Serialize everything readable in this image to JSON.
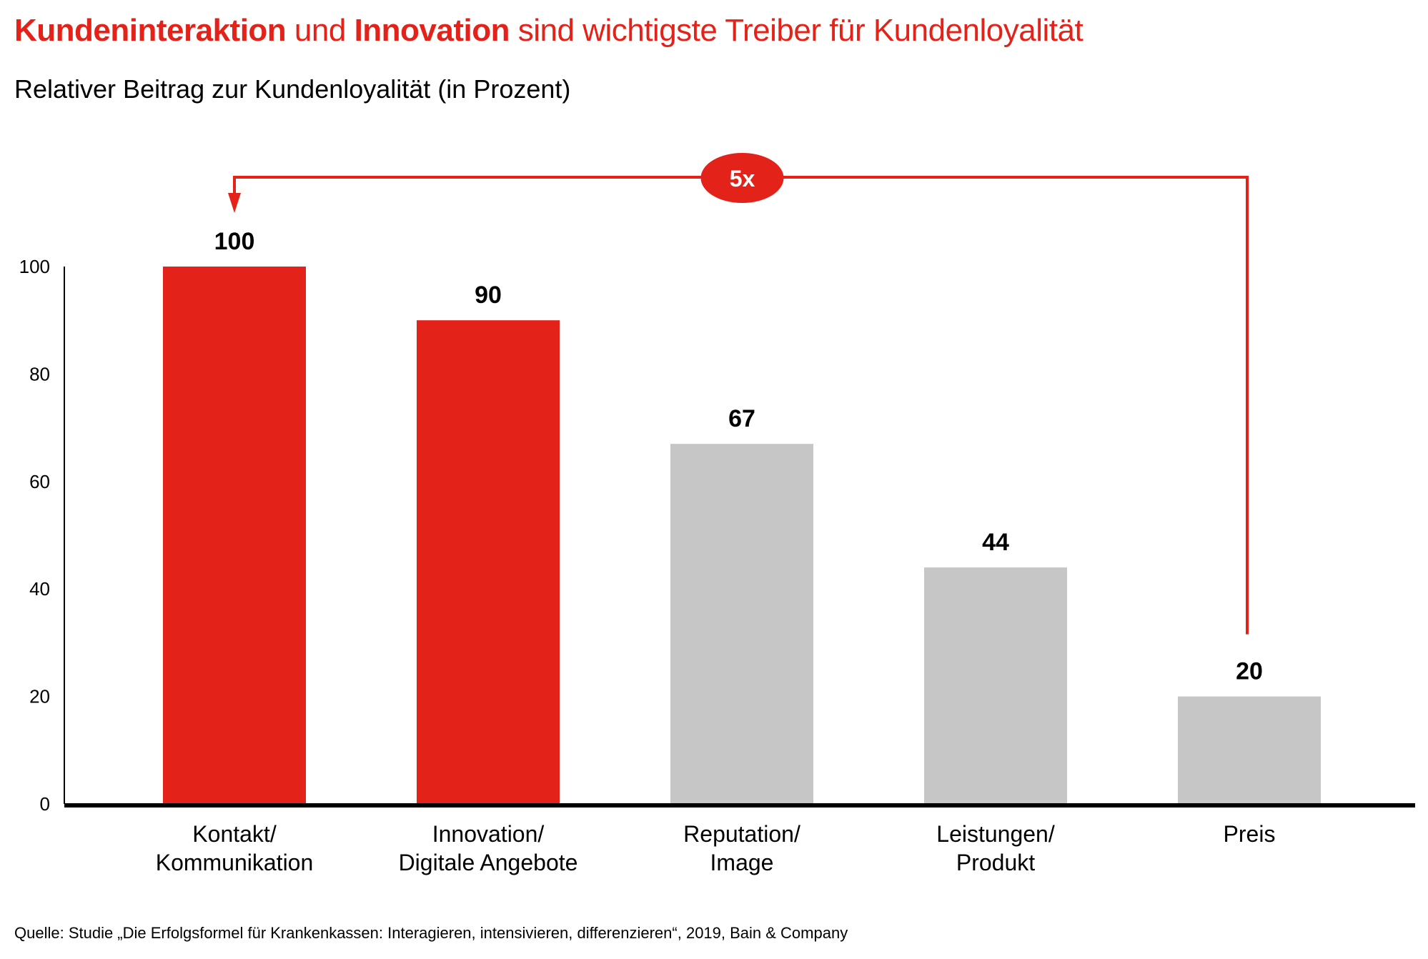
{
  "header": {
    "title_parts": [
      {
        "text": "Kundeninteraktion",
        "bold": true
      },
      {
        "text": " und ",
        "bold": false
      },
      {
        "text": "Innovation",
        "bold": true
      },
      {
        "text": " sind wichtigste Treiber für Kundenloyalität",
        "bold": false
      }
    ],
    "subtitle": "Relativer Beitrag zur Kundenloyalität (in Prozent)"
  },
  "footer": {
    "source": "Quelle: Studie „Die Erfolgsformel für Krankenkassen: Interagieren, intensivieren, differenzieren“, 2019, Bain & Company"
  },
  "colors": {
    "accent": "#e3231a",
    "highlight_bar": "#e3231a",
    "neutral_bar": "#c6c6c6",
    "axis": "#000000"
  },
  "chart_data": {
    "type": "bar",
    "title": "Kundeninteraktion und Innovation sind wichtigste Treiber für Kundenloyalität",
    "subtitle": "Relativer Beitrag zur Kundenloyalität (in Prozent)",
    "xlabel": "",
    "ylabel": "",
    "ylim": [
      0,
      100
    ],
    "yticks": [
      0,
      20,
      40,
      60,
      80,
      100
    ],
    "grid": false,
    "categories": [
      [
        "Kontakt/",
        "Kommunikation"
      ],
      [
        "Innovation/",
        "Digitale Angebote"
      ],
      [
        "Reputation/",
        "Image"
      ],
      [
        "Leistungen/",
        "Produkt"
      ],
      [
        "Preis"
      ]
    ],
    "values": [
      100,
      90,
      67,
      44,
      20
    ],
    "highlighted": [
      true,
      true,
      false,
      false,
      false
    ],
    "annotation": {
      "type": "bracket-arrow",
      "from_category_index": 4,
      "to_category_index": 0,
      "label": "5x"
    }
  }
}
